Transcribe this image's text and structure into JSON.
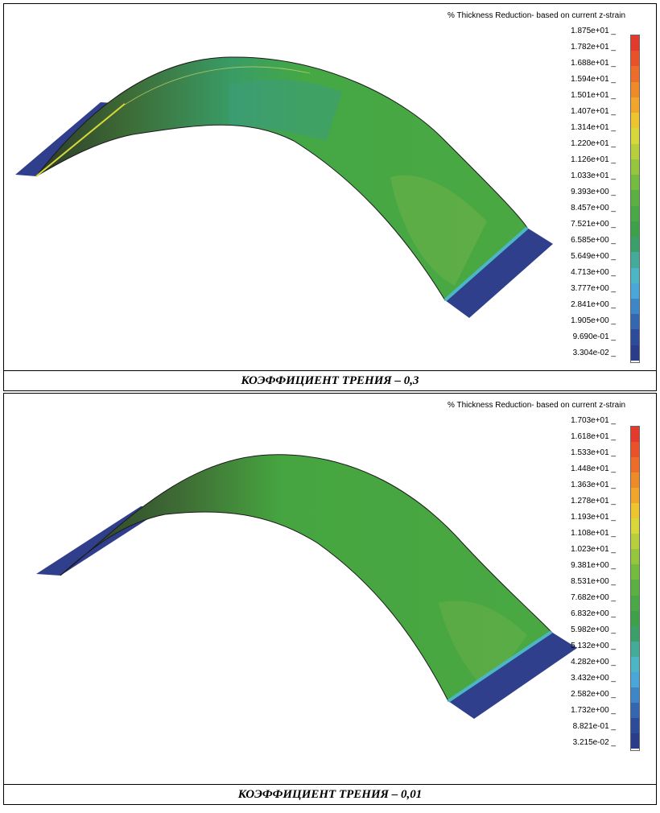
{
  "panels": [
    {
      "legend_title": "% Thickness Reduction- based on current z-strain",
      "legend_values": [
        "1.875e+01",
        "1.782e+01",
        "1.688e+01",
        "1.594e+01",
        "1.501e+01",
        "1.407e+01",
        "1.314e+01",
        "1.220e+01",
        "1.126e+01",
        "1.033e+01",
        "9.393e+00",
        "8.457e+00",
        "7.521e+00",
        "6.585e+00",
        "5.649e+00",
        "4.713e+00",
        "3.777e+00",
        "2.841e+00",
        "1.905e+00",
        "9.690e-01",
        "3.304e-02"
      ],
      "caption": "КОЭФФИЦИЕНТ ТРЕНИЯ – 0,3"
    },
    {
      "legend_title": "% Thickness Reduction- based on current z-strain",
      "legend_values": [
        "1.703e+01",
        "1.618e+01",
        "1.533e+01",
        "1.448e+01",
        "1.363e+01",
        "1.278e+01",
        "1.193e+01",
        "1.108e+01",
        "1.023e+01",
        "9.381e+00",
        "8.531e+00",
        "7.682e+00",
        "6.832e+00",
        "5.982e+00",
        "5.132e+00",
        "4.282e+00",
        "3.432e+00",
        "2.582e+00",
        "1.732e+00",
        "8.821e-01",
        "3.215e-02"
      ],
      "caption": "КОЭФФИЦИЕНТ ТРЕНИЯ – 0,01"
    }
  ],
  "colors": {
    "scale": [
      "#e23a2c",
      "#e8512a",
      "#ec6d2a",
      "#ef8a2a",
      "#f0a52c",
      "#ecc52f",
      "#d9d83a",
      "#b7cf3c",
      "#95c63e",
      "#74bc40",
      "#5ab043",
      "#4aa846",
      "#3fa04a",
      "#3b9f6a",
      "#44aa9a",
      "#4db6c4",
      "#4aa7d8",
      "#3f86c6",
      "#3566b0",
      "#2d4b98",
      "#2b3d8a"
    ],
    "surface": "#46a844",
    "flange": "#2f3f8c"
  }
}
